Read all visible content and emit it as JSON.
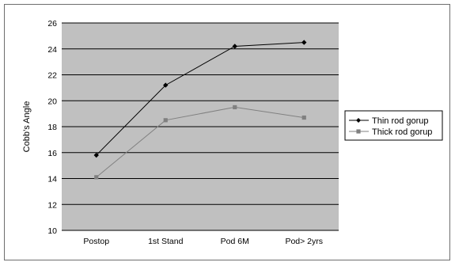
{
  "chart_data": {
    "type": "line",
    "title": "",
    "xlabel": "",
    "ylabel": "Cobb’s Angle",
    "categories": [
      "Postop",
      "1st Stand",
      "Pod 6M",
      "Pod> 2yrs"
    ],
    "ylim": [
      10,
      26
    ],
    "yticks": [
      10,
      12,
      14,
      16,
      18,
      20,
      22,
      24,
      26
    ],
    "grid": true,
    "legend_position": "right",
    "plot_background": "#c0c0c0",
    "series": [
      {
        "name": "Thin rod gorup",
        "values": [
          15.8,
          21.2,
          24.2,
          24.5
        ],
        "color": "#000000",
        "marker": "diamond"
      },
      {
        "name": "Thick rod gorup",
        "values": [
          14.1,
          18.5,
          19.5,
          18.7
        ],
        "color": "#808080",
        "marker": "square"
      }
    ]
  }
}
